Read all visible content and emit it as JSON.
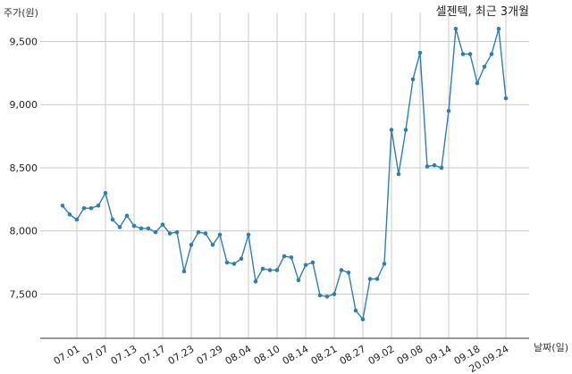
{
  "chart_data": {
    "type": "line",
    "title": "셀젠텍, 최근 3개월",
    "ylabel": "주가(원)",
    "xlabel": "날짜(일)",
    "ylim": [
      7150,
      9800
    ],
    "yticks": [
      7500,
      8000,
      8500,
      9000,
      9500
    ],
    "ytick_labels": [
      "7,500",
      "8,000",
      "8,500",
      "9,000",
      "9,500"
    ],
    "grid": true,
    "color": "#2f7fae",
    "x": [
      "06.29",
      "06.30",
      "07.01",
      "07.02",
      "07.03",
      "07.06",
      "07.07",
      "07.08",
      "07.09",
      "07.10",
      "07.13",
      "07.14",
      "07.15",
      "07.16",
      "07.17",
      "07.20",
      "07.21",
      "07.22",
      "07.23",
      "07.24",
      "07.27",
      "07.28",
      "07.29",
      "07.30",
      "07.31",
      "08.03",
      "08.04",
      "08.05",
      "08.06",
      "08.07",
      "08.10",
      "08.11",
      "08.12",
      "08.13",
      "08.14",
      "08.18",
      "08.19",
      "08.20",
      "08.21",
      "08.24",
      "08.25",
      "08.26",
      "08.27",
      "08.28",
      "08.31",
      "09.01",
      "09.02",
      "09.03",
      "09.04",
      "09.07",
      "09.08",
      "09.09",
      "09.10",
      "09.11",
      "09.14",
      "09.15",
      "09.16",
      "09.17",
      "09.18",
      "09.21",
      "09.22",
      "09.23",
      "20.09.24"
    ],
    "series": [
      {
        "values": [
          8200,
          8130,
          8090,
          8180,
          8180,
          8200,
          8300,
          8090,
          8030,
          8120,
          8040,
          8020,
          8020,
          7990,
          8050,
          7980,
          7990,
          7680,
          7890,
          7990,
          7980,
          7890,
          7970,
          7750,
          7740,
          7780,
          7970,
          7600,
          7700,
          7690,
          7690,
          7800,
          7790,
          7610,
          7730,
          7750,
          7490,
          7480,
          7500,
          7690,
          7670,
          7370,
          7300,
          7620,
          7620,
          7740,
          8800,
          8450,
          8800,
          9200,
          9410,
          8510,
          8520,
          8500,
          8950,
          9600,
          9400,
          9400,
          9170,
          9300,
          9400,
          9600,
          9050
        ]
      }
    ],
    "tick_labels": [
      "07.01",
      "07.07",
      "07.13",
      "07.17",
      "07.23",
      "07.29",
      "08.04",
      "08.10",
      "08.14",
      "08.21",
      "08.27",
      "09.02",
      "09.08",
      "09.14",
      "09.18",
      "20.09.24"
    ]
  }
}
